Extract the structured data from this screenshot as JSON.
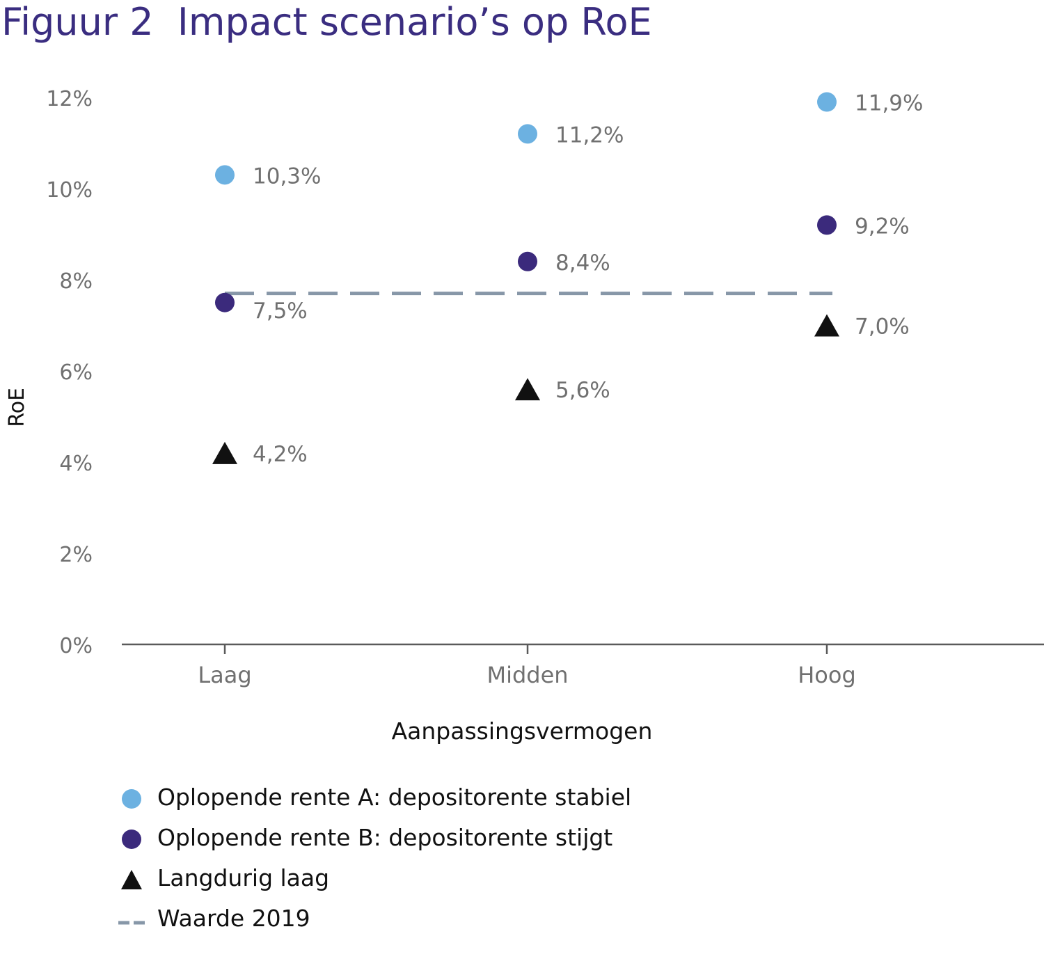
{
  "title": "Figuur 2  Impact scenario’s op RoE",
  "chart_data": {
    "type": "scatter",
    "title": "Figuur 2  Impact scenario’s op RoE",
    "xlabel": "Aanpassingsvermogen",
    "ylabel": "RoE",
    "categories": [
      "Laag",
      "Midden",
      "Hoog"
    ],
    "y_ticks": [
      "0%",
      "2%",
      "4%",
      "6%",
      "8%",
      "10%",
      "12%"
    ],
    "ylim": [
      0,
      12
    ],
    "grid": false,
    "legend_position": "bottom",
    "series": [
      {
        "name": "Oplopende rente A: depositorente stabiel",
        "marker": "circle",
        "color": "#6cb1e1",
        "values": [
          10.3,
          11.2,
          11.9
        ],
        "labels": [
          "10,3%",
          "11,2%",
          "11,9%"
        ]
      },
      {
        "name": "Oplopende rente B: depositorente stijgt",
        "marker": "circle",
        "color": "#3b2a7c",
        "values": [
          7.5,
          8.4,
          9.2
        ],
        "labels": [
          "7,5%",
          "8,4%",
          "9,2%"
        ]
      },
      {
        "name": "Langdurig laag",
        "marker": "triangle",
        "color": "#111111",
        "values": [
          4.2,
          5.6,
          7.0
        ],
        "labels": [
          "4,2%",
          "5,6%",
          "7,0%"
        ]
      }
    ],
    "reference_line": {
      "name": "Waarde 2019",
      "style": "dashed",
      "color": "#8797a8",
      "value": 7.7
    }
  },
  "colors": {
    "title": "#3a2d80",
    "axis_text": "#707070",
    "axis_line": "#5a5a5a"
  }
}
